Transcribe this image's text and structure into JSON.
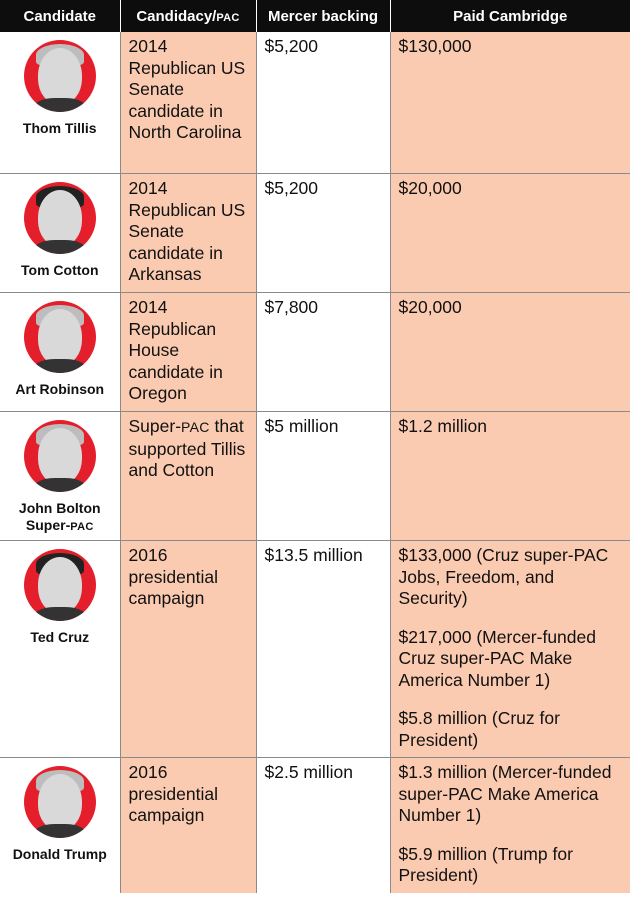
{
  "header": {
    "candidate": "Candidate",
    "candidacy_main": "Candidacy/",
    "candidacy_small": "PAC",
    "mercer": "Mercer backing",
    "paid": "Paid Cambridge"
  },
  "rows": [
    {
      "name": "Thom Tillis",
      "candidacy": "2014 Republican US Senate candidate in North Carolina",
      "mercer": "$5,200",
      "paid": [
        "$130,000"
      ]
    },
    {
      "name": "Tom Cotton",
      "candidacy": "2014 Republican US Senate candidate in Arkansas",
      "mercer": "$5,200",
      "paid": [
        "$20,000"
      ]
    },
    {
      "name": "Art Robinson",
      "candidacy": "2014 Republican House candidate in Oregon",
      "mercer": "$7,800",
      "paid": [
        "$20,000"
      ]
    },
    {
      "name_main": "John Bolton Super-",
      "name_small": "PAC",
      "candidacy_a": "Super-",
      "candidacy_small": "PAC",
      "candidacy_b": " that supported Tillis and Cotton",
      "mercer": "$5 million",
      "paid": [
        "$1.2 million"
      ]
    },
    {
      "name": "Ted Cruz",
      "candidacy": "2016 presidential campaign",
      "mercer": "$13.5 million",
      "paid": [
        "$133,000 (Cruz super-PAC Jobs, Freedom, and Security)",
        "$217,000 (Mercer-funded Cruz super-PAC Make America Number 1)",
        "$5.8 million (Cruz for President)"
      ]
    },
    {
      "name": "Donald Trump",
      "candidacy": "2016 presidential campaign",
      "mercer": "$2.5 million",
      "paid": [
        "$1.3 million (Mercer-funded super-PAC Make America Number 1)",
        "$5.9 million (Trump for President)"
      ]
    }
  ],
  "colors": {
    "header_bg": "#0d0d0d",
    "peach": "#fbcbb1",
    "photo_ring": "#e41f2b"
  }
}
